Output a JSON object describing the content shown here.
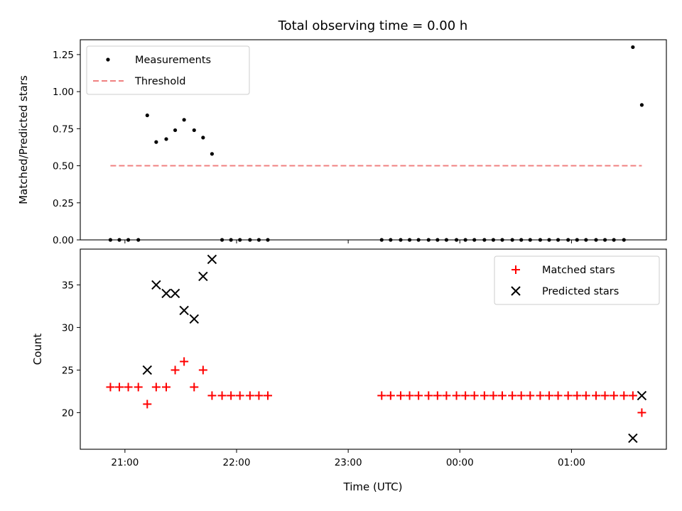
{
  "chart_data": {
    "title": "Total observing time = 0.00 h",
    "xlabel": "Time (UTC)",
    "x_tick_labels": [
      "21:00",
      "22:00",
      "23:00",
      "00:00",
      "01:00"
    ],
    "x_ticks_hours": [
      21,
      22,
      23,
      24,
      25
    ],
    "xlim_hours": [
      20.6,
      25.85
    ],
    "charts": [
      {
        "type": "scatter",
        "ylabel": "Matched/Predicted stars",
        "ylim": [
          0,
          1.35
        ],
        "y_ticks": [
          0.0,
          0.25,
          0.5,
          0.75,
          1.0,
          1.25
        ],
        "y_tick_labels": [
          "0.00",
          "0.25",
          "0.50",
          "0.75",
          "1.00",
          "1.25"
        ],
        "legend_position": "upper-left",
        "series": [
          {
            "name": "Measurements",
            "marker": "dot",
            "color": "#000000",
            "x": [
              20.87,
              20.95,
              21.03,
              21.12,
              21.2,
              21.28,
              21.37,
              21.45,
              21.53,
              21.62,
              21.7,
              21.78,
              21.87,
              21.95,
              22.03,
              22.12,
              22.2,
              22.28,
              23.3,
              23.38,
              23.47,
              23.55,
              23.63,
              23.72,
              23.8,
              23.88,
              23.97,
              24.05,
              24.13,
              24.22,
              24.3,
              24.38,
              24.47,
              24.55,
              24.63,
              24.72,
              24.8,
              24.88,
              24.97,
              25.05,
              25.13,
              25.22,
              25.3,
              25.38,
              25.47,
              25.55,
              25.63
            ],
            "y": [
              0,
              0,
              0,
              0,
              0.84,
              0.66,
              0.68,
              0.74,
              0.81,
              0.74,
              0.69,
              0.58,
              0,
              0,
              0,
              0,
              0,
              0,
              0,
              0,
              0,
              0,
              0,
              0,
              0,
              0,
              0,
              0,
              0,
              0,
              0,
              0,
              0,
              0,
              0,
              0,
              0,
              0,
              0,
              0,
              0,
              0,
              0,
              0,
              0,
              1.3,
              0.91
            ]
          },
          {
            "name": "Threshold",
            "type": "line",
            "style": "dashed",
            "color": "#f08080",
            "x": [
              20.87,
              25.63
            ],
            "y": [
              0.5,
              0.5
            ]
          }
        ]
      },
      {
        "type": "scatter",
        "ylabel": "Count",
        "ylim": [
          15.7,
          39.2
        ],
        "y_ticks": [
          20,
          25,
          30,
          35
        ],
        "y_tick_labels": [
          "20",
          "25",
          "30",
          "35"
        ],
        "legend_position": "upper-right",
        "series": [
          {
            "name": "Matched stars",
            "marker": "plus",
            "color": "#ff0000",
            "x": [
              20.87,
              20.95,
              21.03,
              21.12,
              21.2,
              21.28,
              21.37,
              21.45,
              21.53,
              21.62,
              21.7,
              21.78,
              21.87,
              21.95,
              22.03,
              22.12,
              22.2,
              22.28,
              23.3,
              23.38,
              23.47,
              23.55,
              23.63,
              23.72,
              23.8,
              23.88,
              23.97,
              24.05,
              24.13,
              24.22,
              24.3,
              24.38,
              24.47,
              24.55,
              24.63,
              24.72,
              24.8,
              24.88,
              24.97,
              25.05,
              25.13,
              25.22,
              25.3,
              25.38,
              25.47,
              25.55,
              25.63
            ],
            "y": [
              23,
              23,
              23,
              23,
              21,
              23,
              23,
              25,
              26,
              23,
              25,
              22,
              22,
              22,
              22,
              22,
              22,
              22,
              22,
              22,
              22,
              22,
              22,
              22,
              22,
              22,
              22,
              22,
              22,
              22,
              22,
              22,
              22,
              22,
              22,
              22,
              22,
              22,
              22,
              22,
              22,
              22,
              22,
              22,
              22,
              22,
              20
            ]
          },
          {
            "name": "Predicted stars",
            "marker": "x",
            "color": "#000000",
            "x": [
              21.2,
              21.28,
              21.37,
              21.45,
              21.53,
              21.62,
              21.7,
              21.78,
              25.55,
              25.63
            ],
            "y": [
              25,
              35,
              34,
              34,
              32,
              31,
              36,
              38,
              17,
              22
            ]
          }
        ]
      }
    ]
  }
}
